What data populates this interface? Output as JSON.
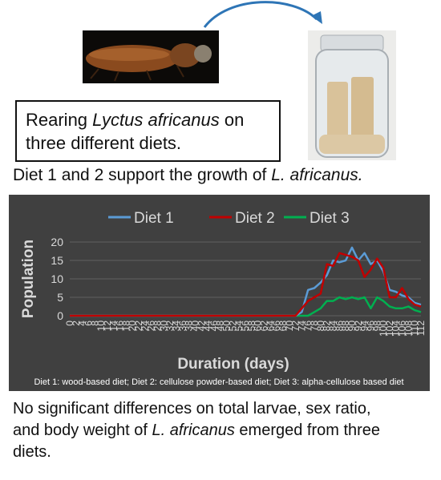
{
  "rearing_text": {
    "prefix": "Rearing ",
    "species": "Lyctus africanus",
    "suffix": " on",
    "line2": "three different diets."
  },
  "support_text": {
    "prefix": "Diet 1 and 2 support the growth of ",
    "species": "L. africanus."
  },
  "conclusion_text": {
    "line1": "No significant differences on total larvae, sex ratio,",
    "line2_prefix": "and body weight of ",
    "species": "L. africanus",
    "line2_suffix": " emerged from three",
    "line3": "diets."
  },
  "colors": {
    "panel_bg": "#404040",
    "grid": "#5f5f5f",
    "text": "#d9d9d9",
    "diet1": "#5b9bd5",
    "diet2": "#c00000",
    "diet3": "#00b050"
  },
  "chart_data": {
    "type": "line",
    "title": "",
    "xlabel": "Duration (days)",
    "ylabel": "Population",
    "ylim": [
      0,
      20
    ],
    "yticks": [
      "0",
      "5",
      "10",
      "15",
      "20"
    ],
    "legend_position": "top",
    "grid": true,
    "footnote": "Diet 1: wood-based diet; Diet 2: cellulose powder-based diet; Diet 3: alpha-cellulose based diet",
    "x": [
      0,
      2,
      4,
      6,
      8,
      10,
      12,
      14,
      16,
      18,
      20,
      22,
      24,
      26,
      28,
      30,
      32,
      34,
      36,
      38,
      40,
      42,
      44,
      46,
      48,
      50,
      52,
      54,
      56,
      58,
      60,
      62,
      64,
      66,
      68,
      70,
      72,
      74,
      76,
      78,
      80,
      82,
      84,
      86,
      88,
      90,
      92,
      94,
      96,
      98,
      100,
      102,
      104,
      106,
      108,
      110,
      112
    ],
    "x_tick_labels": [
      "0",
      "2",
      "4",
      "6",
      "8",
      "10",
      "12",
      "14",
      "16",
      "18",
      "20",
      "22",
      "24",
      "26",
      "28",
      "30",
      "32",
      "34",
      "36",
      "38",
      "40",
      "42",
      "44",
      "46",
      "48",
      "50",
      "52",
      "54",
      "56",
      "58",
      "60",
      "62",
      "64",
      "66",
      "68",
      "70",
      "72",
      "74",
      "76",
      "78",
      "80",
      "82",
      "84",
      "86",
      "88",
      "90",
      "92",
      "94",
      "96",
      "98",
      "100",
      "102",
      "104",
      "106",
      "108",
      "110",
      "112"
    ],
    "series": [
      {
        "name": "Diet 1",
        "values": [
          0,
          0,
          0,
          0,
          0,
          0,
          0,
          0,
          0,
          0,
          0,
          0,
          0,
          0,
          0,
          0,
          0,
          0,
          0,
          0,
          0,
          0,
          0,
          0,
          0,
          0,
          0,
          0,
          0,
          0,
          0,
          0,
          0,
          0,
          0,
          0,
          0,
          1,
          7,
          7.5,
          9,
          11,
          15,
          14.5,
          15,
          18.5,
          15,
          17,
          14,
          15,
          12,
          7,
          6.5,
          5.5,
          5,
          3.5,
          3
        ]
      },
      {
        "name": "Diet 2",
        "values": [
          0,
          0,
          0,
          0,
          0,
          0,
          0,
          0,
          0,
          0,
          0,
          0,
          0,
          0,
          0,
          0,
          0,
          0,
          0,
          0,
          0,
          0,
          0,
          0,
          0,
          0,
          0,
          0,
          0,
          0,
          0,
          0,
          0,
          0,
          0,
          0,
          0,
          2,
          4,
          5,
          6,
          14,
          13.5,
          17,
          16.5,
          16,
          15,
          10.5,
          12.5,
          15.5,
          13,
          5,
          5,
          7.5,
          4.5,
          3,
          2.5
        ]
      },
      {
        "name": "Diet 3",
        "values": [
          0,
          0,
          0,
          0,
          0,
          0,
          0,
          0,
          0,
          0,
          0,
          0,
          0,
          0,
          0,
          0,
          0,
          0,
          0,
          0,
          0,
          0,
          0,
          0,
          0,
          0,
          0,
          0,
          0,
          0,
          0,
          0,
          0,
          0,
          0,
          0,
          0,
          0,
          0,
          1,
          2,
          4,
          4,
          5,
          4.5,
          5,
          4.5,
          5,
          2,
          5,
          4,
          2.5,
          2,
          2,
          2.5,
          1.5,
          1
        ]
      }
    ]
  }
}
